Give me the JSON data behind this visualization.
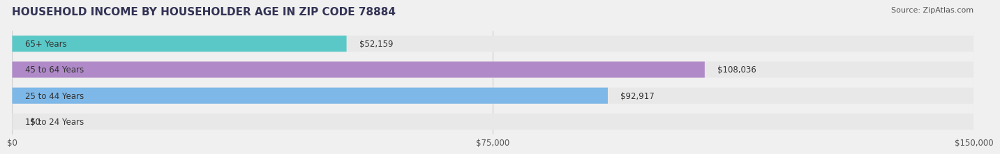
{
  "title": "HOUSEHOLD INCOME BY HOUSEHOLDER AGE IN ZIP CODE 78884",
  "source": "Source: ZipAtlas.com",
  "categories": [
    "15 to 24 Years",
    "25 to 44 Years",
    "45 to 64 Years",
    "65+ Years"
  ],
  "values": [
    0,
    92917,
    108036,
    52159
  ],
  "bar_colors": [
    "#f4a0a0",
    "#7eb8e8",
    "#b08ac8",
    "#5bc8c8"
  ],
  "bar_labels": [
    "$0",
    "$92,917",
    "$108,036",
    "$52,159"
  ],
  "xlim": [
    0,
    150000
  ],
  "xticks": [
    0,
    75000,
    150000
  ],
  "xticklabels": [
    "$0",
    "$75,000",
    "$150,000"
  ],
  "background_color": "#f0f0f0",
  "bar_background_color": "#e8e8e8",
  "title_fontsize": 11,
  "source_fontsize": 8,
  "label_fontsize": 8.5,
  "tick_fontsize": 8.5,
  "bar_height": 0.62
}
